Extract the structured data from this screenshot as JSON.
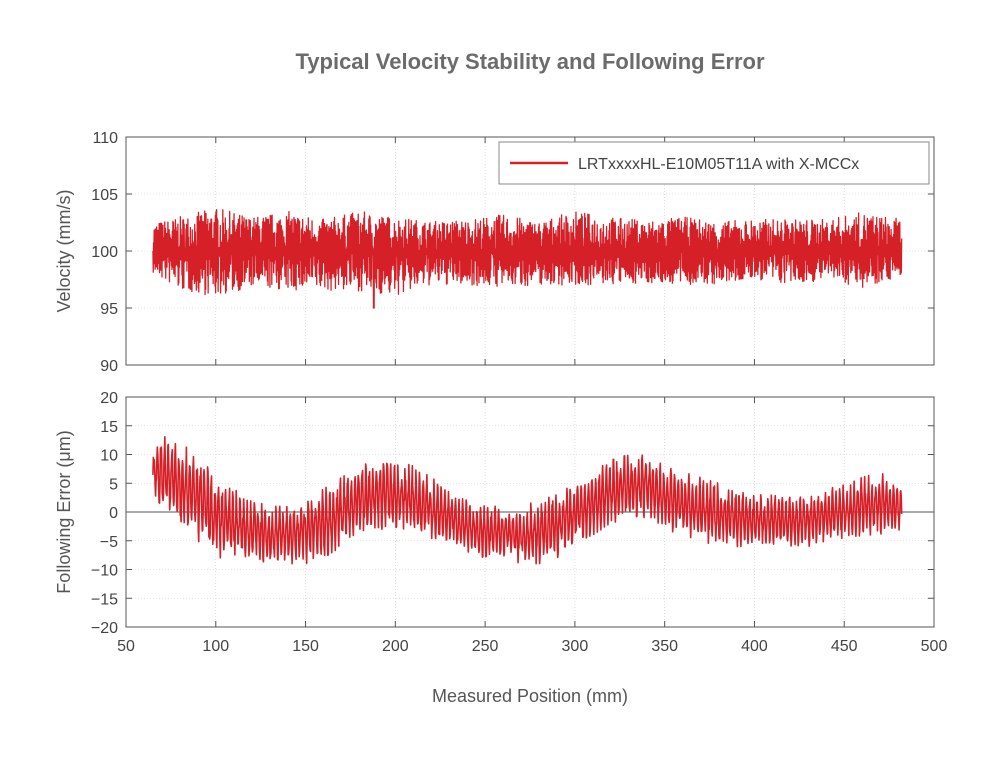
{
  "chart_data": {
    "type": "line",
    "title": "Typical Velocity Stability and Following Error",
    "xlabel": "Measured Position (mm)",
    "colors": {
      "series": "#d62027",
      "grid": "#c8c8c8",
      "axis": "#555555"
    },
    "xlim": [
      50,
      500
    ],
    "xticks": [
      "50",
      "100",
      "150",
      "200",
      "250",
      "300",
      "350",
      "400",
      "450",
      "500"
    ],
    "legend": {
      "placement": "top-right",
      "entry": "LRTxxxxHL-E10M05T11A with X-MCCx"
    },
    "panels": [
      {
        "ylabel": "Velocity (mm/s)",
        "ylim": [
          90,
          110
        ],
        "yticks": [
          "90",
          "95",
          "100",
          "105",
          "110"
        ],
        "grid": true,
        "series": [
          {
            "name": "LRTxxxxHL-E10M05T11A with X-MCCx",
            "x": [
              65,
              80,
              100,
              120,
              140,
              160,
              180,
              200,
              220,
              240,
              260,
              280,
              300,
              320,
              340,
              360,
              380,
              400,
              420,
              440,
              460,
              482
            ],
            "upper": [
              102.5,
              103.0,
              103.8,
              103.0,
              103.5,
              102.8,
              103.5,
              103.0,
              102.6,
              102.8,
              103.2,
              102.6,
              103.5,
              103.0,
              102.7,
              103.0,
              102.6,
              102.8,
              102.8,
              102.8,
              103.4,
              102.8
            ],
            "lower": [
              98.0,
              96.5,
              96.0,
              96.8,
              96.5,
              96.5,
              96.5,
              96.0,
              97.0,
              97.0,
              96.8,
              97.0,
              97.0,
              97.0,
              97.2,
              97.0,
              97.0,
              97.5,
              97.0,
              97.5,
              96.8,
              97.8
            ],
            "spikes_low": [
              {
                "x": 188,
                "y": 95.0
              }
            ],
            "center": 100
          }
        ]
      },
      {
        "ylabel": "Following Error (μm)",
        "ylim": [
          -20,
          20
        ],
        "yticks": [
          "−20",
          "−15",
          "−10",
          "−5",
          "0",
          "5",
          "10",
          "15",
          "20"
        ],
        "grid": true,
        "series": [
          {
            "name": "LRTxxxxHL-E10M05T11A with X-MCCx",
            "x": [
              65,
              70,
              80,
              90,
              100,
              110,
              120,
              130,
              140,
              150,
              160,
              170,
              180,
              190,
              200,
              210,
              220,
              230,
              240,
              250,
              260,
              270,
              280,
              290,
              300,
              310,
              320,
              330,
              340,
              350,
              360,
              370,
              380,
              390,
              400,
              410,
              420,
              430,
              440,
              450,
              460,
              470,
              482
            ],
            "upper": [
              11,
              14,
              12,
              10,
              6,
              4,
              2,
              1,
              1,
              2,
              4,
              6,
              8,
              9,
              9,
              8,
              6,
              4,
              2,
              1,
              1,
              1,
              2,
              3,
              5,
              7,
              9,
              10,
              10,
              8,
              7,
              6,
              5,
              4,
              3,
              3,
              3,
              3,
              4,
              5,
              6,
              7,
              4
            ],
            "lower": [
              1,
              0,
              -2,
              -5,
              -8,
              -8,
              -8,
              -9,
              -9,
              -9,
              -8,
              -6,
              -4,
              -3,
              -3,
              -4,
              -5,
              -6,
              -7,
              -8,
              -8,
              -9,
              -9,
              -8,
              -6,
              -4,
              -2,
              -1,
              -1,
              -3,
              -4,
              -5,
              -6,
              -6,
              -6,
              -6,
              -6,
              -6,
              -5,
              -5,
              -4,
              -4,
              -3
            ]
          }
        ]
      }
    ]
  }
}
